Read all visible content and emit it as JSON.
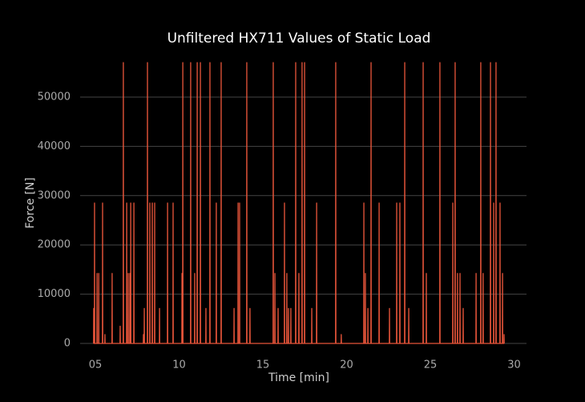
{
  "chart_data": {
    "type": "line",
    "title": "Unfiltered HX711 Values of Static Load",
    "xlabel": "Time [min]",
    "ylabel": "Force [N]",
    "color": "#e8553a",
    "grid": true,
    "xlim": [
      4.09,
      30.74
    ],
    "xticks": [
      {
        "value": 5,
        "label": "05"
      },
      10,
      15,
      20,
      25,
      30
    ],
    "ylim": [
      -1300,
      58500
    ],
    "yticks": [
      0,
      10000,
      20000,
      30000,
      40000,
      50000
    ],
    "x": [
      4.89,
      4.9,
      4.91,
      4.94,
      4.95,
      4.96,
      5.09,
      5.1,
      5.11,
      5.19,
      5.2,
      5.21,
      5.42,
      5.43,
      5.44,
      5.56,
      5.57,
      5.58,
      5.99,
      6,
      6.01,
      6.47,
      6.48,
      6.49,
      6.66,
      6.67,
      6.68,
      6.86,
      6.87,
      6.88,
      6.95,
      6.96,
      6.97,
      7.05,
      7.06,
      7.07,
      7.1,
      7.11,
      7.12,
      7.29,
      7.3,
      7.31,
      7.86,
      7.87,
      7.88,
      7.91,
      7.92,
      7.93,
      8.1,
      8.11,
      8.12,
      8.24,
      8.25,
      8.26,
      8.39,
      8.4,
      8.41,
      8.53,
      8.54,
      8.55,
      8.82,
      8.83,
      8.84,
      9.3,
      9.31,
      9.32,
      9.63,
      9.64,
      9.65,
      10.16,
      10.17,
      10.18,
      10.21,
      10.22,
      10.23,
      10.68,
      10.69,
      10.7,
      10.92,
      10.93,
      10.94,
      11.07,
      11.08,
      11.09,
      11.26,
      11.27,
      11.28,
      11.59,
      11.6,
      11.61,
      11.83,
      11.84,
      11.85,
      12.21,
      12.22,
      12.23,
      12.5,
      12.51,
      12.52,
      13.27,
      13.28,
      13.29,
      13.51,
      13.52,
      13.53,
      13.6,
      13.61,
      13.62,
      14.03,
      14.04,
      14.05,
      14.22,
      14.23,
      14.24,
      15.61,
      15.62,
      15.63,
      15.71,
      15.72,
      15.73,
      15.9,
      15.91,
      15.92,
      16.28,
      16.29,
      16.3,
      16.42,
      16.43,
      16.44,
      16.52,
      16.53,
      16.54,
      16.66,
      16.67,
      16.68,
      16.95,
      16.96,
      16.97,
      17.14,
      17.15,
      17.16,
      17.33,
      17.34,
      17.35,
      17.48,
      17.49,
      17.5,
      17.91,
      17.92,
      17.93,
      18.2,
      18.21,
      18.22,
      19.34,
      19.35,
      19.36,
      19.67,
      19.68,
      19.69,
      21.02,
      21.03,
      21.04,
      21.11,
      21.12,
      21.13,
      21.26,
      21.27,
      21.28,
      21.45,
      21.46,
      21.47,
      21.93,
      21.94,
      21.95,
      22.55,
      22.56,
      22.57,
      22.98,
      22.99,
      23,
      23.17,
      23.18,
      23.19,
      23.46,
      23.47,
      23.48,
      23.7,
      23.71,
      23.72,
      24.56,
      24.57,
      24.58,
      24.75,
      24.76,
      24.77,
      25.56,
      25.57,
      25.58,
      26.33,
      26.34,
      26.35,
      26.47,
      26.48,
      26.49,
      26.61,
      26.62,
      26.63,
      26.76,
      26.77,
      26.78,
      26.95,
      26.96,
      26.97,
      27.72,
      27.73,
      27.74,
      28,
      28.01,
      28.02,
      28.14,
      28.15,
      28.16,
      28.58,
      28.59,
      28.6,
      28.77,
      28.78,
      28.79,
      28.91,
      28.92,
      28.93,
      29.15,
      29.16,
      29.17,
      29.3,
      29.31,
      29.32,
      29.39,
      29.4,
      29.41
    ],
    "values": [
      0,
      7100,
      0,
      0,
      28500,
      0,
      0,
      14200,
      0,
      0,
      14200,
      0,
      0,
      28500,
      0,
      0,
      1800,
      0,
      0,
      14200,
      0,
      0,
      3500,
      0,
      0,
      57000,
      0,
      0,
      28500,
      0,
      0,
      14200,
      0,
      0,
      14200,
      0,
      0,
      28500,
      0,
      0,
      28500,
      0,
      0,
      1800,
      0,
      0,
      7100,
      0,
      0,
      57000,
      0,
      0,
      28500,
      0,
      0,
      28500,
      0,
      0,
      28500,
      0,
      0,
      7100,
      0,
      0,
      28500,
      0,
      0,
      28500,
      0,
      0,
      14200,
      0,
      0,
      57000,
      0,
      0,
      57000,
      0,
      0,
      14200,
      0,
      0,
      57000,
      0,
      0,
      57000,
      0,
      0,
      7100,
      0,
      0,
      57000,
      0,
      0,
      28500,
      0,
      0,
      57000,
      0,
      0,
      7100,
      0,
      0,
      28500,
      0,
      0,
      28500,
      0,
      0,
      57000,
      0,
      0,
      7100,
      0,
      0,
      57000,
      0,
      0,
      14200,
      0,
      0,
      7100,
      0,
      0,
      28500,
      0,
      0,
      14200,
      0,
      0,
      7100,
      0,
      0,
      7100,
      0,
      0,
      57000,
      0,
      0,
      14200,
      0,
      0,
      57000,
      0,
      0,
      57000,
      0,
      0,
      7100,
      0,
      0,
      28500,
      0,
      0,
      57000,
      0,
      0,
      1800,
      0,
      0,
      28500,
      0,
      0,
      14200,
      0,
      0,
      7100,
      0,
      0,
      57000,
      0,
      0,
      28500,
      0,
      0,
      7100,
      0,
      0,
      28500,
      0,
      0,
      28500,
      0,
      0,
      57000,
      0,
      0,
      7100,
      0,
      0,
      57000,
      0,
      0,
      14200,
      0,
      0,
      57000,
      0,
      0,
      28500,
      0,
      0,
      57000,
      0,
      0,
      14200,
      0,
      0,
      14200,
      0,
      0,
      7100,
      0,
      0,
      14200,
      0,
      0,
      57000,
      0,
      0,
      14200,
      0,
      0,
      57000,
      0,
      0,
      28500,
      0,
      0,
      57000,
      0,
      0,
      28500,
      0,
      0,
      14200,
      0,
      0,
      1800,
      0
    ]
  }
}
